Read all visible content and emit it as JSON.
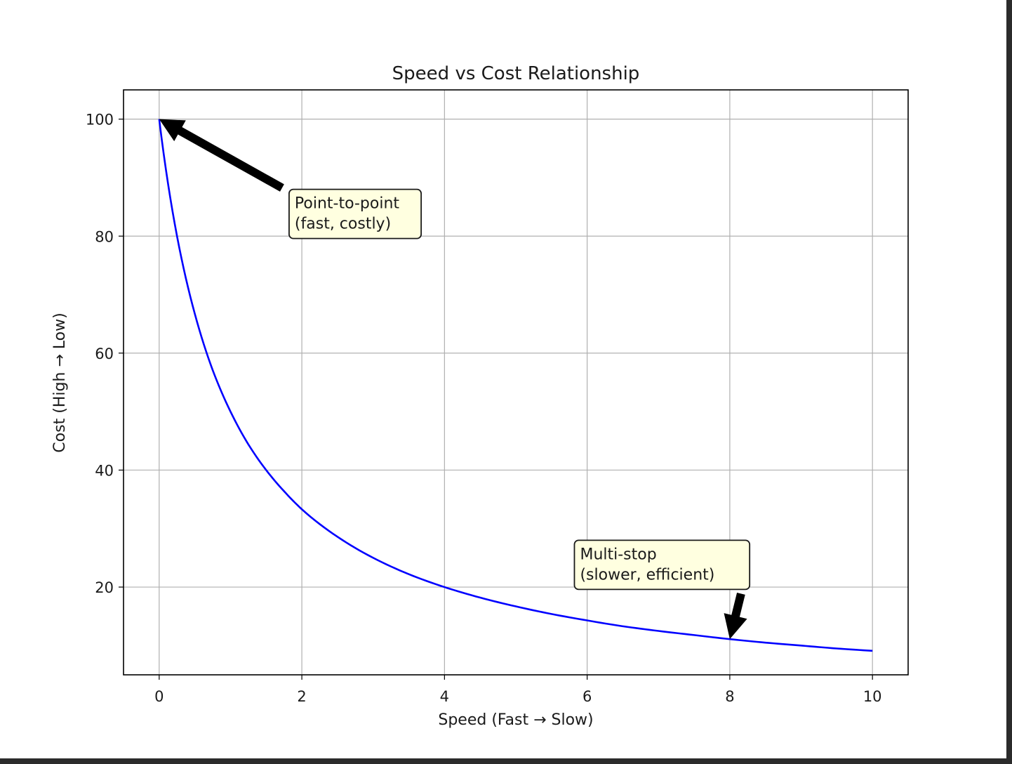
{
  "chart_data": {
    "type": "line",
    "title": "Speed vs Cost Relationship",
    "xlabel": "Speed (Fast → Slow)",
    "ylabel": "Cost (High → Low)",
    "xlim": [
      -0.5,
      10.5
    ],
    "ylim": [
      5,
      105
    ],
    "xticks": [
      "0",
      "2",
      "4",
      "6",
      "8",
      "10"
    ],
    "yticks": [
      "20",
      "40",
      "60",
      "80",
      "100"
    ],
    "grid": true,
    "series": [
      {
        "color": "#0000ff",
        "x": [
          0,
          0.25,
          0.5,
          0.75,
          1,
          1.25,
          1.5,
          1.75,
          2,
          2.5,
          3,
          3.5,
          4,
          4.5,
          5,
          5.5,
          6,
          6.5,
          7,
          7.5,
          8,
          8.5,
          9,
          9.5,
          10
        ],
        "y": [
          100,
          80,
          66.7,
          57.1,
          50,
          44.4,
          40,
          36.4,
          33.3,
          28.6,
          25,
          22.2,
          20,
          18.2,
          16.7,
          15.4,
          14.3,
          13.3,
          12.5,
          11.8,
          11.1,
          10.5,
          10,
          9.5,
          9.1
        ]
      }
    ],
    "annotations": [
      {
        "lines": [
          "Point-to-point",
          "(fast, costly)"
        ],
        "target": [
          0,
          100
        ],
        "text_at": [
          1.9,
          85
        ]
      },
      {
        "lines": [
          "Multi-stop",
          "(slower, efficient)"
        ],
        "target": [
          8,
          11.1
        ],
        "text_at": [
          5.9,
          25
        ]
      }
    ],
    "colors": {
      "line": "#0000ff",
      "grid": "#b0b0b0",
      "annotation_fill": "#ffffe0",
      "arrow": "#000000"
    }
  }
}
